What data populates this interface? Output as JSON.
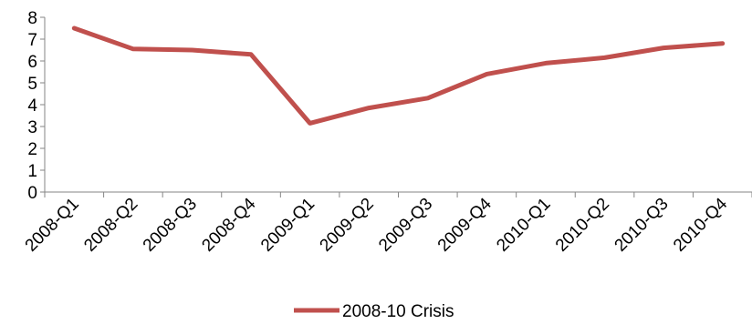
{
  "chart_data": {
    "type": "line",
    "title": "",
    "xlabel": "",
    "ylabel": "",
    "categories": [
      "2008-Q1",
      "2008-Q2",
      "2008-Q3",
      "2008-Q4",
      "2009-Q1",
      "2009-Q2",
      "2009-Q3",
      "2009-Q4",
      "2010-Q1",
      "2010-Q2",
      "2010-Q3",
      "2010-Q4"
    ],
    "ylim": [
      0,
      8
    ],
    "yticks": [
      "0",
      "1",
      "2",
      "3",
      "4",
      "5",
      "6",
      "7",
      "8"
    ],
    "grid": false,
    "legend_position": "bottom",
    "series": [
      {
        "name": "2008-10 Crisis",
        "color": "#C0504D",
        "values": [
          7.5,
          6.55,
          6.5,
          6.3,
          3.15,
          3.85,
          4.3,
          5.4,
          5.9,
          6.15,
          6.6,
          6.8
        ]
      }
    ]
  }
}
